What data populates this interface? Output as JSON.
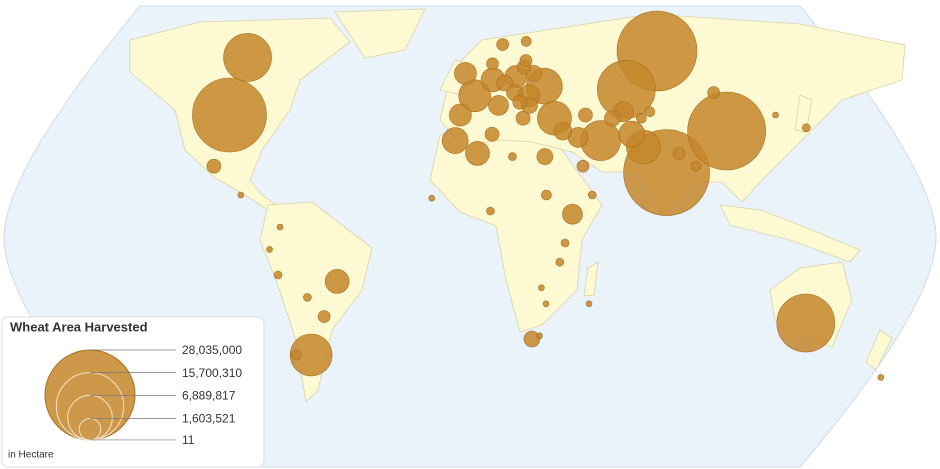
{
  "chart_data": {
    "type": "bubble-map",
    "title": "Wheat Area Harvested",
    "unit_note": "in Hectare",
    "color": "#c4862a",
    "stroke": "#a86f20",
    "size_legend": [
      {
        "value": 28035000,
        "label": "28,035,000"
      },
      {
        "value": 15700310,
        "label": "15,700,310"
      },
      {
        "value": 6889817,
        "label": "6,889,817"
      },
      {
        "value": 1603521,
        "label": "1,603,521"
      },
      {
        "value": 11,
        "label": "11"
      }
    ],
    "bubbles": [
      {
        "lon": 78,
        "lat": 22,
        "value": 25600000
      },
      {
        "lon": 85,
        "lat": 60,
        "value": 22150000
      },
      {
        "lon": 105,
        "lat": 35,
        "value": 21060000
      },
      {
        "lon": -100,
        "lat": 40,
        "value": 18950000
      },
      {
        "lon": 67,
        "lat": 48,
        "value": 11640000
      },
      {
        "lon": 134,
        "lat": -25,
        "value": 11640000
      },
      {
        "lon": -100,
        "lat": 58,
        "value": 7970000
      },
      {
        "lon": -65,
        "lat": -35,
        "value": 6100000
      },
      {
        "lon": 53,
        "lat": 32,
        "value": 5540000
      },
      {
        "lon": 32,
        "lat": 49,
        "value": 4490000
      },
      {
        "lon": 35,
        "lat": 39,
        "value": 4000000
      },
      {
        "lon": 70,
        "lat": 30,
        "value": 4000000
      },
      {
        "lon": 2,
        "lat": 46,
        "value": 3540000
      },
      {
        "lon": 66,
        "lat": 34,
        "value": 2340000
      },
      {
        "lon": -6,
        "lat": 32,
        "value": 2340000
      },
      {
        "lon": 10,
        "lat": 51,
        "value": 1990000
      },
      {
        "lon": 3,
        "lat": 28,
        "value": 1990000
      },
      {
        "lon": -52,
        "lat": -12,
        "value": 1990000
      },
      {
        "lon": 20,
        "lat": 52,
        "value": 1680000
      },
      {
        "lon": -4,
        "lat": 40,
        "value": 1680000
      },
      {
        "lon": 25,
        "lat": 46,
        "value": 1680000
      },
      {
        "lon": -2,
        "lat": 53,
        "value": 1680000
      },
      {
        "lon": 64,
        "lat": 41,
        "value": 1380000
      },
      {
        "lon": 40,
        "lat": 9,
        "value": 1380000
      },
      {
        "lon": 12,
        "lat": 43,
        "value": 1380000
      },
      {
        "lon": 44,
        "lat": 33,
        "value": 1380000
      },
      {
        "lon": 38,
        "lat": 35,
        "value": 1120000
      },
      {
        "lon": 30,
        "lat": 27,
        "value": 886000
      },
      {
        "lon": 25,
        "lat": -30,
        "value": 886000
      },
      {
        "lon": 19,
        "lat": 47,
        "value": 886000
      },
      {
        "lon": 15,
        "lat": 50,
        "value": 886000
      },
      {
        "lon": 25,
        "lat": 43,
        "value": 886000
      },
      {
        "lon": 28,
        "lat": 53,
        "value": 886000
      },
      {
        "lon": 59,
        "lat": 39,
        "value": 886000
      },
      {
        "lon": -102,
        "lat": 24,
        "value": 678000
      },
      {
        "lon": 21,
        "lat": 44,
        "value": 678000
      },
      {
        "lon": 24,
        "lat": 55,
        "value": 678000
      },
      {
        "lon": 22,
        "lat": 39,
        "value": 678000
      },
      {
        "lon": 9,
        "lat": 34,
        "value": 678000
      },
      {
        "lon": 48,
        "lat": 40,
        "value": 678000
      },
      {
        "lon": 45,
        "lat": 24,
        "value": 498000
      },
      {
        "lon": 84,
        "lat": 28,
        "value": 498000
      },
      {
        "lon": -58,
        "lat": -23,
        "value": 498000
      },
      {
        "lon": 15,
        "lat": 62,
        "value": 498000
      },
      {
        "lon": 10,
        "lat": 56,
        "value": 498000
      },
      {
        "lon": 25,
        "lat": 57,
        "value": 498000
      },
      {
        "lon": 104,
        "lat": 47,
        "value": 498000
      },
      {
        "lon": 90,
        "lat": 24,
        "value": 346000
      },
      {
        "lon": -71,
        "lat": -35,
        "value": 346000
      },
      {
        "lon": 30,
        "lat": 15,
        "value": 346000
      },
      {
        "lon": 26,
        "lat": 63,
        "value": 346000
      },
      {
        "lon": 75,
        "lat": 41,
        "value": 346000
      },
      {
        "lon": 71,
        "lat": 39,
        "value": 346000
      },
      {
        "lon": 138,
        "lat": 36,
        "value": 221000
      },
      {
        "lon": -64,
        "lat": -17,
        "value": 221000
      },
      {
        "lon": -75,
        "lat": -10,
        "value": 221000
      },
      {
        "lon": 37,
        "lat": 0,
        "value": 221000
      },
      {
        "lon": 35,
        "lat": -6,
        "value": 221000
      },
      {
        "lon": 8,
        "lat": 10,
        "value": 221000
      },
      {
        "lon": 17,
        "lat": 27,
        "value": 221000
      },
      {
        "lon": 48,
        "lat": 15,
        "value": 221000
      },
      {
        "lon": 127,
        "lat": 40,
        "value": 125000
      },
      {
        "lon": 172,
        "lat": -42,
        "value": 125000
      },
      {
        "lon": 28,
        "lat": -14,
        "value": 125000
      },
      {
        "lon": 30,
        "lat": -19,
        "value": 125000
      },
      {
        "lon": -78,
        "lat": -2,
        "value": 125000
      },
      {
        "lon": -74,
        "lat": 5,
        "value": 125000
      },
      {
        "lon": -90,
        "lat": 15,
        "value": 125000
      },
      {
        "lon": 28,
        "lat": -29,
        "value": 125000
      },
      {
        "lon": 47,
        "lat": -19,
        "value": 125000
      },
      {
        "lon": -15,
        "lat": 14,
        "value": 125000
      }
    ]
  }
}
